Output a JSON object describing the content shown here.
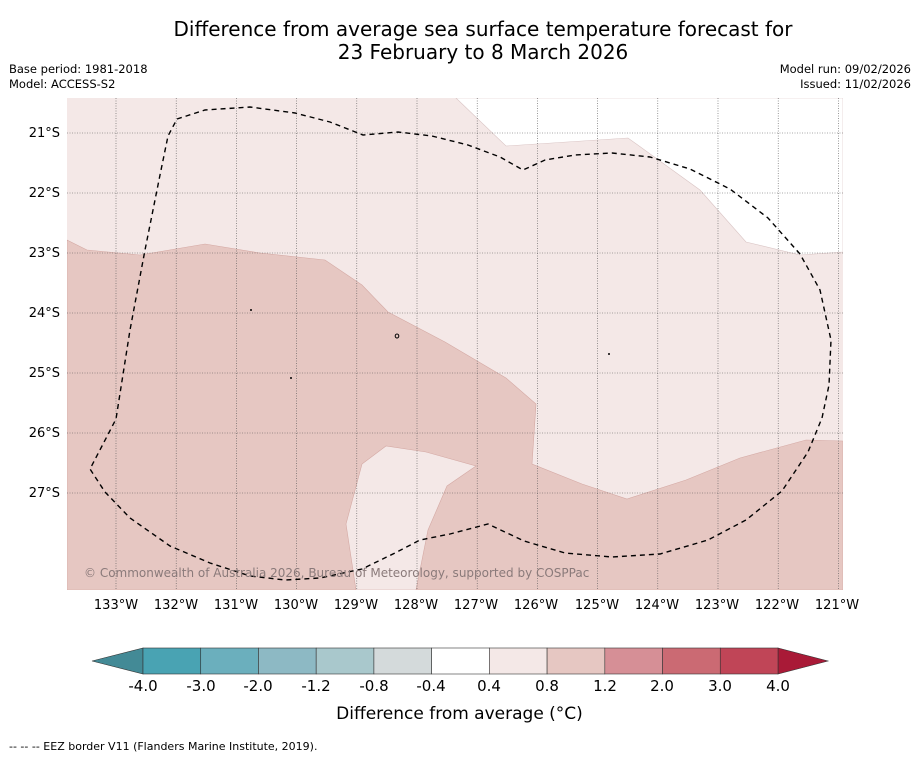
{
  "title_line1": "Difference from average sea surface temperature forecast for",
  "title_line2": "23 February to 8 March 2026",
  "base_period": "Base period: 1981-2018",
  "model": "Model: ACCESS-S2",
  "model_run": "Model run: 09/02/2026",
  "issued": "Issued: 11/02/2026",
  "latitudes": [
    "21°S",
    "22°S",
    "23°S",
    "24°S",
    "25°S",
    "26°S",
    "27°S"
  ],
  "longitudes": [
    "133°W",
    "132°W",
    "131°W",
    "130°W",
    "129°W",
    "128°W",
    "127°W",
    "126°W",
    "125°W",
    "124°W",
    "123°W",
    "122°W",
    "121°W"
  ],
  "copyright": "© Commonwealth of Australia 2026, Bureau of Meteorology, supported by COSPPac",
  "colorbar": {
    "ticks": [
      "-4.0",
      "-3.0",
      "-2.0",
      "-1.2",
      "-0.8",
      "-0.4",
      "0.4",
      "0.8",
      "1.2",
      "2.0",
      "3.0",
      "4.0"
    ],
    "title": "Difference from average (°C)",
    "colors": [
      "#438a96",
      "#49a3b3",
      "#6bafbd",
      "#8db9c4",
      "#a9c8cc",
      "#d4dadb",
      "#ffffff",
      "#f4e8e7",
      "#e6c7c2",
      "#d68f96",
      "#cb6a73",
      "#c04557",
      "#a91a37"
    ]
  },
  "map_colors": {
    "band_04_08": "#f4e8e7",
    "band_08_12": "#e6c7c2"
  },
  "footnote": "--  --  -- EEZ border V11 (Flanders Marine Institute, 2019)."
}
